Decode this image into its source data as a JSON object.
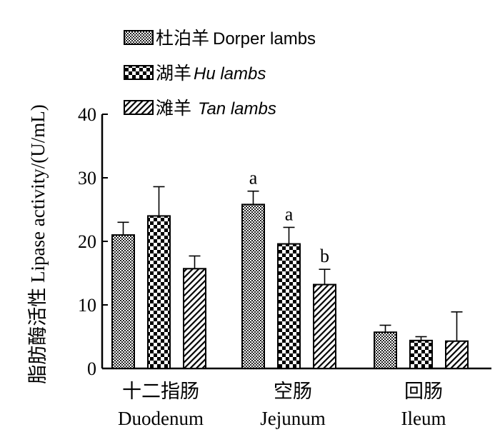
{
  "chart_data": {
    "type": "bar",
    "ylabel": "脂肪酶活性 Lipase activity/(U/mL)",
    "ylim": [
      0,
      40
    ],
    "yticks": [
      0,
      10,
      20,
      30,
      40
    ],
    "categories": [
      {
        "cn": "十二指肠",
        "en": "Duodenum"
      },
      {
        "cn": "空肠",
        "en": "Jejunum"
      },
      {
        "cn": "回肠",
        "en": "Ileum"
      }
    ],
    "series": [
      {
        "name_cn": "杜泊羊",
        "name_en": "Dorper lambs",
        "pattern": "fine-check",
        "values": [
          21.0,
          25.8,
          5.7
        ],
        "errors": [
          2.0,
          2.1,
          1.1
        ],
        "labels": [
          "",
          "a",
          ""
        ]
      },
      {
        "name_cn": "湖羊",
        "name_en": "Hu lambs",
        "pattern": "coarse-check",
        "values": [
          24.0,
          19.6,
          4.4
        ],
        "errors": [
          4.6,
          2.6,
          0.6
        ],
        "labels": [
          "",
          "a",
          ""
        ]
      },
      {
        "name_cn": "滩羊",
        "name_en": "Tan lambs",
        "pattern": "diagonal",
        "values": [
          15.7,
          13.2,
          4.3
        ],
        "errors": [
          2.0,
          2.4,
          4.6
        ],
        "labels": [
          "",
          "b",
          ""
        ]
      }
    ],
    "legend_position": "top-left",
    "grid": false
  }
}
